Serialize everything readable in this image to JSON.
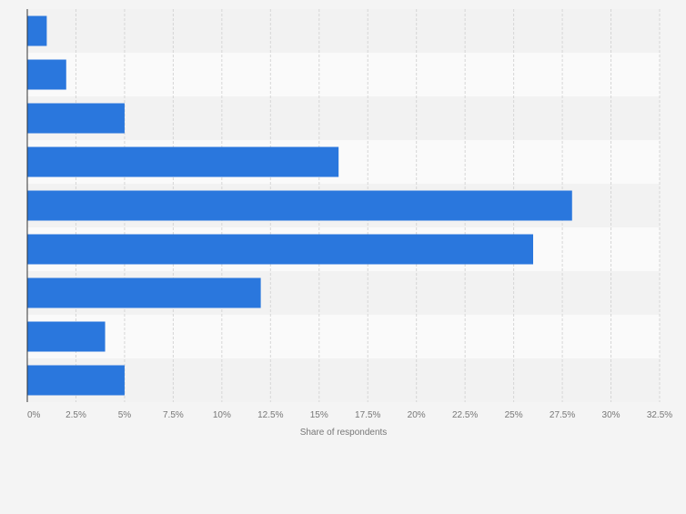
{
  "chart_data": {
    "type": "bar",
    "orientation": "horizontal",
    "categories": [
      "",
      "",
      "",
      "",
      "",
      "",
      "",
      "",
      ""
    ],
    "values": [
      1,
      2,
      5,
      16,
      28,
      26,
      12,
      4,
      5
    ],
    "xlabel": "Share of respondents",
    "ylabel": "",
    "xlim": [
      0,
      32.5
    ],
    "ticks": [
      "0%",
      "2.5%",
      "5%",
      "7.5%",
      "10%",
      "12.5%",
      "15%",
      "17.5%",
      "20%",
      "22.5%",
      "25%",
      "27.5%",
      "30%",
      "32.5%"
    ],
    "tick_values": [
      0,
      2.5,
      5,
      7.5,
      10,
      12.5,
      15,
      17.5,
      20,
      22.5,
      25,
      27.5,
      30,
      32.5
    ],
    "grid": true,
    "legend": "none",
    "colors": {
      "bar": "#2a77dd",
      "band_light": "#fafafa",
      "band_dark": "#f2f2f2",
      "grid": "#d6d6d6",
      "axis": "#333333",
      "tick_text": "#777777",
      "background": "#f4f4f4"
    }
  }
}
